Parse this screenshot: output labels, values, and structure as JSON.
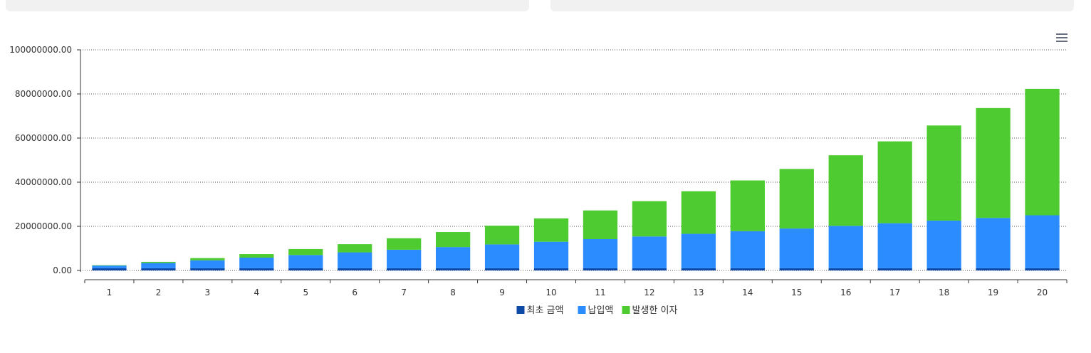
{
  "chart_data": {
    "type": "bar",
    "stacked": true,
    "categories": [
      "1",
      "2",
      "3",
      "4",
      "5",
      "6",
      "7",
      "8",
      "9",
      "10",
      "11",
      "12",
      "13",
      "14",
      "15",
      "16",
      "17",
      "18",
      "19",
      "20"
    ],
    "y_tick_labels": [
      "0.00",
      "20000000.00",
      "40000000.00",
      "60000000.00",
      "80000000.00",
      "100000000.00"
    ],
    "y_ticks": [
      0,
      20000000,
      40000000,
      60000000,
      80000000,
      100000000
    ],
    "ylim": [
      0,
      100000000
    ],
    "grid": true,
    "legend_position": "bottom",
    "series": [
      {
        "name": "최초 금액",
        "color": "#0d4aa6",
        "values": [
          1000000,
          1000000,
          1000000,
          1000000,
          1000000,
          1000000,
          1000000,
          1000000,
          1000000,
          1000000,
          1000000,
          1000000,
          1000000,
          1000000,
          1000000,
          1000000,
          1000000,
          1000000,
          1000000,
          1000000
        ]
      },
      {
        "name": "납입액",
        "color": "#2b8cff",
        "values": [
          1200000,
          2400000,
          3600000,
          4800000,
          6000000,
          7200000,
          8400000,
          9600000,
          10800000,
          12000000,
          13200000,
          14400000,
          15600000,
          16800000,
          18000000,
          19200000,
          20400000,
          21600000,
          22800000,
          24000000
        ]
      },
      {
        "name": "발생한 이자",
        "color": "#4ecb30",
        "values": [
          200000,
          500000,
          1000000,
          1600000,
          2700000,
          3700000,
          5200000,
          6800000,
          8500000,
          10600000,
          13000000,
          16000000,
          19300000,
          23000000,
          27000000,
          32000000,
          37100000,
          43100000,
          49800000,
          57300000
        ]
      }
    ]
  },
  "ui": {
    "menu_icon": "hamburger-menu-icon"
  }
}
